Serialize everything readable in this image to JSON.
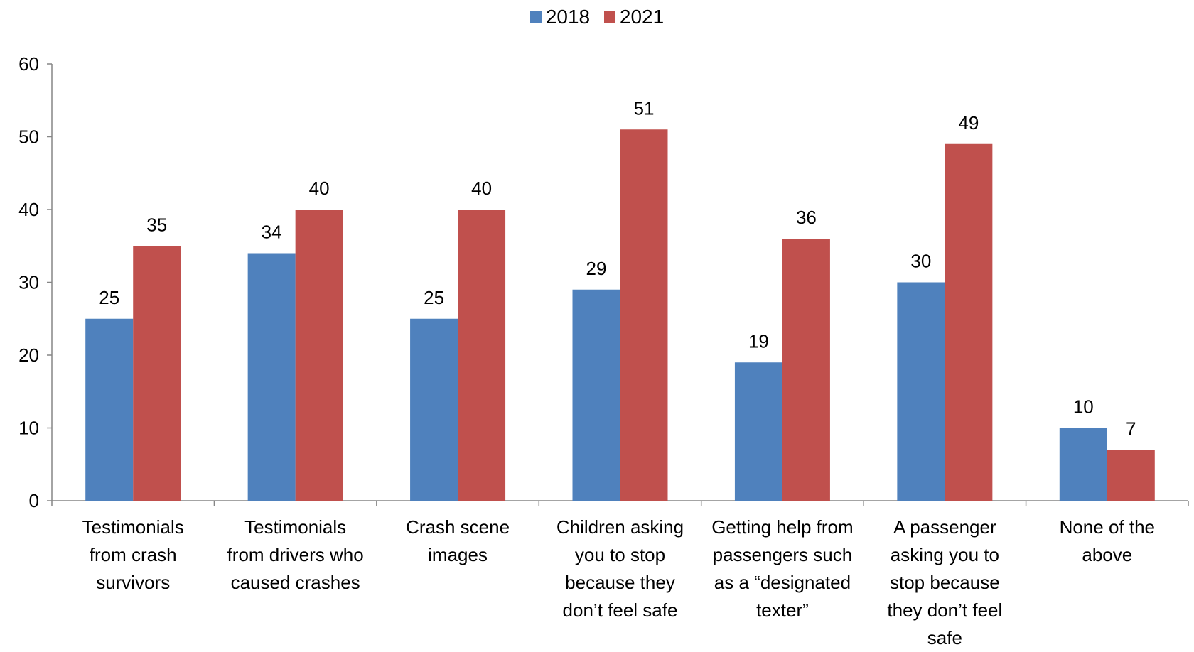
{
  "chart_data": {
    "type": "bar",
    "categories": [
      "Testimonials\nfrom crash\nsurvivors",
      "Testimonials\nfrom drivers who\ncaused crashes",
      "Crash scene\nimages",
      "Children asking\nyou to stop\nbecause they\ndon’t feel safe",
      "Getting help from\npassengers such\nas a “designated\ntexter”",
      "A passenger\nasking you to\nstop because\nthey don’t feel\nsafe",
      "None of the\nabove"
    ],
    "series": [
      {
        "name": "2018",
        "color": "#4F81BD",
        "values": [
          25,
          34,
          25,
          29,
          19,
          30,
          10
        ]
      },
      {
        "name": "2021",
        "color": "#C0504D",
        "values": [
          35,
          40,
          40,
          51,
          36,
          49,
          7
        ]
      }
    ],
    "ylim": [
      0,
      60
    ],
    "yticks": [
      0,
      10,
      20,
      30,
      40,
      50,
      60
    ],
    "grid": false,
    "legend_position": "top-center",
    "data_labels": true
  }
}
